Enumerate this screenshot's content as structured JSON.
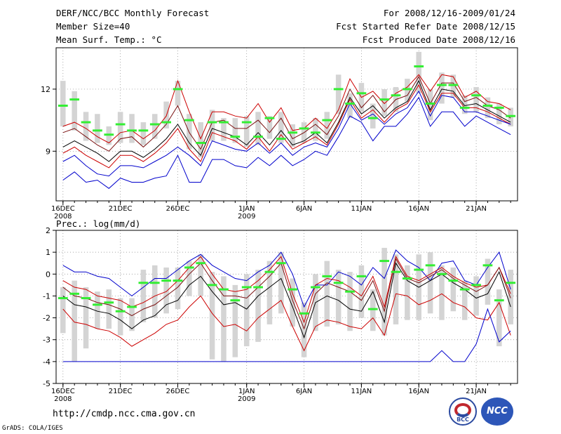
{
  "header": {
    "title": "DERF/NCC/BCC Monthly Forecast",
    "member_size": "Member Size=40",
    "var1": "Mean Surf. Temp.: °C",
    "period": "For 2008/12/16-2009/01/24",
    "started": "Fcst Started Refer Date 2008/12/15",
    "produced": "Fcst Produced Date 2008/12/16",
    "var2": "Prec.: log(mm/d)"
  },
  "footer": {
    "url": "http://cmdp.ncc.cma.gov.cn",
    "grads": "GrADS: COLA/IGES"
  },
  "logos": {
    "bcc": "BCC",
    "ncc": "NCC"
  },
  "colors": {
    "box": "#d4d4d4",
    "median": "#33ee33",
    "mean": "#000000",
    "band": "#cc0000",
    "extreme": "#0000cc"
  },
  "chart_data": [
    {
      "type": "line",
      "title": "Mean Surf. Temp.: °C",
      "x_start": "16DEC2008",
      "x_tick_labels": [
        "16DEC",
        "21DEC",
        "26DEC",
        "1JAN",
        "6JAN",
        "11JAN",
        "16JAN",
        "21JAN"
      ],
      "x_tick_days": [
        1,
        6,
        11,
        17,
        22,
        27,
        32,
        37
      ],
      "x_year_labels": [
        {
          "day": 1,
          "label": "2008"
        },
        {
          "day": 17,
          "label": "2009"
        }
      ],
      "ylim": [
        6.6,
        14.0
      ],
      "yticks": [
        9,
        12
      ],
      "series": [
        {
          "name": "max",
          "values": [
            7.6,
            8.0,
            7.5,
            7.6,
            7.2,
            7.7,
            7.5,
            7.5,
            7.7,
            7.8,
            8.8,
            7.5,
            7.5,
            8.6,
            8.6,
            8.3,
            8.2,
            8.7,
            8.3,
            8.8,
            8.3,
            8.6,
            9.0,
            8.8,
            9.7,
            10.7,
            10.4,
            9.5,
            10.2,
            10.2,
            10.8,
            11.6,
            10.2,
            10.9,
            10.9,
            10.2,
            10.7,
            10.4,
            10.1,
            9.8
          ]
        },
        {
          "name": "p90",
          "values": [
            10.2,
            10.4,
            10.1,
            9.7,
            9.4,
            9.9,
            10.0,
            9.6,
            10.0,
            10.7,
            12.4,
            10.9,
            9.6,
            10.9,
            10.9,
            10.7,
            10.6,
            11.3,
            10.4,
            11.1,
            10.0,
            10.1,
            10.6,
            10.1,
            11.0,
            12.5,
            11.6,
            11.9,
            11.3,
            11.8,
            12.1,
            12.7,
            11.9,
            12.7,
            12.6,
            11.6,
            11.9,
            11.4,
            11.3,
            11.0
          ]
        },
        {
          "name": "p75",
          "values": [
            9.9,
            10.1,
            9.7,
            9.3,
            9.0,
            9.6,
            9.7,
            9.2,
            9.7,
            10.3,
            11.2,
            9.9,
            9.1,
            10.4,
            10.5,
            10.1,
            10.1,
            10.5,
            9.9,
            10.6,
            9.6,
            9.9,
            10.3,
            9.8,
            10.7,
            12.0,
            11.1,
            11.7,
            10.9,
            11.5,
            11.7,
            12.6,
            11.3,
            12.3,
            12.3,
            11.4,
            11.6,
            11.2,
            11.0,
            10.6
          ]
        },
        {
          "name": "mean",
          "values": [
            9.2,
            9.5,
            9.2,
            8.9,
            8.5,
            9.0,
            9.0,
            8.7,
            9.1,
            9.6,
            10.3,
            9.4,
            8.8,
            10.1,
            9.9,
            9.7,
            9.3,
            9.9,
            9.3,
            10.0,
            9.3,
            9.5,
            9.9,
            9.4,
            10.4,
            11.6,
            10.8,
            11.2,
            10.6,
            11.1,
            11.4,
            12.4,
            11.0,
            12.0,
            11.9,
            11.2,
            11.3,
            11.0,
            10.7,
            10.4
          ]
        },
        {
          "name": "p25",
          "values": [
            8.9,
            9.2,
            8.8,
            8.5,
            8.2,
            8.8,
            8.8,
            8.5,
            8.9,
            9.4,
            10.1,
            9.1,
            8.5,
            9.9,
            9.7,
            9.5,
            9.1,
            9.7,
            9.0,
            9.8,
            9.1,
            9.4,
            9.7,
            9.3,
            10.3,
            11.5,
            10.6,
            11.0,
            10.4,
            11.0,
            11.3,
            12.2,
            10.9,
            11.8,
            11.8,
            11.1,
            11.1,
            10.9,
            10.6,
            10.3
          ]
        },
        {
          "name": "min",
          "values": [
            8.5,
            8.8,
            8.3,
            7.9,
            7.8,
            8.3,
            8.3,
            8.2,
            8.5,
            8.8,
            9.2,
            8.8,
            8.3,
            9.5,
            9.3,
            9.1,
            9.0,
            9.4,
            8.9,
            9.4,
            8.8,
            9.2,
            9.4,
            9.2,
            10.1,
            11.3,
            10.5,
            10.8,
            10.3,
            10.8,
            11.1,
            11.9,
            10.7,
            11.7,
            11.6,
            10.9,
            10.9,
            10.7,
            10.5,
            10.3
          ]
        },
        {
          "name": "median",
          "values": [
            11.2,
            11.5,
            10.4,
            10.0,
            9.8,
            10.3,
            10.0,
            10.0,
            10.3,
            10.4,
            12.0,
            10.5,
            9.4,
            10.4,
            10.4,
            9.7,
            10.4,
            9.7,
            10.6,
            9.6,
            9.9,
            10.1,
            9.9,
            10.5,
            12.0,
            11.3,
            11.8,
            10.6,
            11.5,
            11.7,
            12.0,
            13.1,
            11.3,
            12.2,
            12.2,
            11.1,
            11.7,
            11.2,
            11.1,
            10.7
          ]
        }
      ],
      "box_low": [
        10.2,
        10.0,
        9.5,
        9.4,
        9.3,
        9.4,
        9.4,
        9.3,
        9.6,
        10.1,
        11.2,
        9.1,
        8.7,
        9.5,
        9.5,
        9.4,
        9.2,
        9.3,
        9.6,
        9.4,
        9.2,
        9.4,
        9.5,
        9.6,
        10.8,
        10.6,
        10.9,
        10.1,
        10.7,
        10.9,
        11.4,
        11.8,
        10.5,
        11.3,
        11.6,
        10.8,
        10.9,
        10.6,
        10.3,
        10.2
      ],
      "box_high": [
        12.4,
        11.9,
        10.9,
        10.8,
        10.2,
        10.9,
        10.8,
        10.4,
        10.8,
        11.4,
        12.4,
        10.8,
        10.4,
        11.0,
        10.6,
        10.6,
        10.7,
        10.9,
        10.7,
        10.9,
        10.3,
        10.4,
        10.6,
        10.9,
        12.7,
        11.8,
        12.3,
        11.3,
        12.0,
        12.1,
        12.5,
        13.8,
        12.0,
        12.8,
        12.7,
        11.7,
        12.1,
        11.6,
        11.3,
        11.1
      ]
    },
    {
      "type": "line",
      "title": "Prec.: log(mm/d)",
      "x_start": "16DEC2008",
      "x_tick_labels": [
        "16DEC",
        "21DEC",
        "26DEC",
        "1JAN",
        "6JAN",
        "11JAN",
        "16JAN",
        "21JAN"
      ],
      "x_tick_days": [
        1,
        6,
        11,
        17,
        22,
        27,
        32,
        37
      ],
      "x_year_labels": [
        {
          "day": 1,
          "label": "2008"
        },
        {
          "day": 17,
          "label": "2009"
        }
      ],
      "ylim": [
        -5,
        2
      ],
      "yticks": [
        -5,
        -4,
        -3,
        -2,
        -1,
        0,
        1,
        2
      ],
      "series": [
        {
          "name": "max",
          "values": [
            0.4,
            0.1,
            0.1,
            -0.1,
            -0.2,
            -0.6,
            -1.0,
            -0.6,
            -0.2,
            -0.2,
            0.2,
            0.6,
            0.9,
            0.4,
            0.1,
            -0.2,
            -0.3,
            0.1,
            0.4,
            1.0,
            0.0,
            -1.5,
            -0.5,
            -0.5,
            0.1,
            -0.1,
            -0.5,
            0.3,
            -0.2,
            1.1,
            0.6,
            0.3,
            -0.3,
            0.5,
            0.6,
            -0.3,
            -0.5,
            0.3,
            1.0,
            -0.7
          ]
        },
        {
          "name": "p90",
          "values": [
            -0.3,
            -0.6,
            -0.7,
            -1.0,
            -1.1,
            -1.2,
            -1.5,
            -1.3,
            -1.0,
            -0.8,
            -0.3,
            0.3,
            0.8,
            0.0,
            -0.7,
            -0.8,
            -0.7,
            -0.3,
            0.2,
            0.8,
            -0.9,
            -2.2,
            -0.5,
            -0.2,
            -0.3,
            -0.6,
            -1.0,
            -0.1,
            -1.5,
            0.8,
            -0.1,
            -0.3,
            0.0,
            0.3,
            -0.1,
            -0.4,
            -0.6,
            -0.5,
            0.3,
            -0.9
          ]
        },
        {
          "name": "p75",
          "values": [
            -0.6,
            -1.0,
            -1.1,
            -1.3,
            -1.4,
            -1.6,
            -1.9,
            -1.6,
            -1.4,
            -1.0,
            -0.6,
            0.0,
            0.5,
            -0.3,
            -1.0,
            -1.0,
            -1.1,
            -0.6,
            -0.1,
            0.5,
            -1.2,
            -2.5,
            -0.9,
            -0.4,
            -0.6,
            -0.8,
            -1.2,
            -0.3,
            -1.7,
            0.7,
            -0.2,
            -0.4,
            -0.1,
            0.2,
            -0.2,
            -0.5,
            -0.8,
            -0.5,
            0.3,
            -1.1
          ]
        },
        {
          "name": "mean",
          "values": [
            -1.0,
            -1.4,
            -1.5,
            -1.7,
            -1.8,
            -2.1,
            -2.5,
            -2.1,
            -1.9,
            -1.4,
            -1.2,
            -0.5,
            -0.1,
            -0.8,
            -1.4,
            -1.3,
            -1.6,
            -1.0,
            -0.6,
            -0.2,
            -1.5,
            -2.9,
            -1.3,
            -1.0,
            -1.2,
            -1.6,
            -1.7,
            -0.8,
            -2.2,
            0.5,
            -0.3,
            -0.6,
            -0.3,
            0.0,
            -0.4,
            -0.7,
            -1.1,
            -0.9,
            0.1,
            -1.5
          ]
        },
        {
          "name": "p25",
          "values": [
            -1.6,
            -2.2,
            -2.3,
            -2.5,
            -2.6,
            -2.9,
            -3.3,
            -3.0,
            -2.7,
            -2.3,
            -2.1,
            -1.5,
            -1.0,
            -1.8,
            -2.4,
            -2.3,
            -2.6,
            -2.0,
            -1.6,
            -1.2,
            -2.4,
            -3.5,
            -2.4,
            -2.1,
            -2.2,
            -2.4,
            -2.5,
            -2.0,
            -2.8,
            -0.9,
            -1.0,
            -1.4,
            -1.2,
            -0.9,
            -1.3,
            -1.5,
            -2.0,
            -2.1,
            -1.3,
            -2.8
          ]
        },
        {
          "name": "min",
          "values": [
            -4.0,
            -4.0,
            -4.0,
            -4.0,
            -4.0,
            -4.0,
            -4.0,
            -4.0,
            -4.0,
            -4.0,
            -4.0,
            -4.0,
            -4.0,
            -4.0,
            -4.0,
            -4.0,
            -4.0,
            -4.0,
            -4.0,
            -4.0,
            -4.0,
            -4.0,
            -4.0,
            -4.0,
            -4.0,
            -4.0,
            -4.0,
            -4.0,
            -4.0,
            -4.0,
            -4.0,
            -4.0,
            -4.0,
            -3.5,
            -4.0,
            -4.0,
            -3.2,
            -1.6,
            -3.1,
            -2.6
          ]
        },
        {
          "name": "median",
          "values": [
            -1.1,
            -0.9,
            -1.1,
            -1.4,
            -1.3,
            -1.7,
            -1.5,
            -0.4,
            -0.4,
            -0.3,
            -0.3,
            0.3,
            0.5,
            -0.5,
            -0.7,
            -1.2,
            -0.6,
            -0.6,
            0.1,
            0.5,
            -0.7,
            -1.8,
            -0.6,
            -0.1,
            -0.4,
            -0.8,
            -0.1,
            -1.6,
            0.6,
            0.1,
            -0.2,
            0.2,
            0.4,
            0.0,
            -0.3,
            -0.7,
            -0.5,
            0.4,
            -1.2,
            -0.4
          ]
        }
      ],
      "box_low": [
        -2.7,
        -4.0,
        -3.4,
        -2.5,
        -2.5,
        -2.8,
        -2.6,
        -2.2,
        -2.0,
        -1.8,
        -1.6,
        -1.0,
        -1.0,
        -3.9,
        -4.0,
        -3.8,
        -3.3,
        -3.1,
        -2.3,
        -1.8,
        -2.4,
        -3.8,
        -2.6,
        -2.4,
        -2.3,
        -2.6,
        -2.0,
        -2.6,
        -2.8,
        -2.3,
        -2.1,
        -2.1,
        -1.8,
        -2.1,
        -1.7,
        -2.1,
        -1.9,
        -1.4,
        -3.3,
        -2.3
      ],
      "box_high": [
        -0.6,
        -0.3,
        -0.6,
        -0.8,
        -0.7,
        -1.1,
        -1.1,
        0.2,
        0.4,
        0.3,
        0.3,
        0.6,
        0.9,
        0.1,
        -0.1,
        -0.5,
        0.0,
        0.2,
        0.6,
        1.0,
        -0.2,
        -1.3,
        0.0,
        0.6,
        0.2,
        0.1,
        0.4,
        -0.7,
        1.2,
        0.9,
        0.4,
        0.9,
        1.0,
        0.4,
        0.3,
        -0.3,
        -0.1,
        0.7,
        -0.7,
        0.2
      ]
    }
  ]
}
